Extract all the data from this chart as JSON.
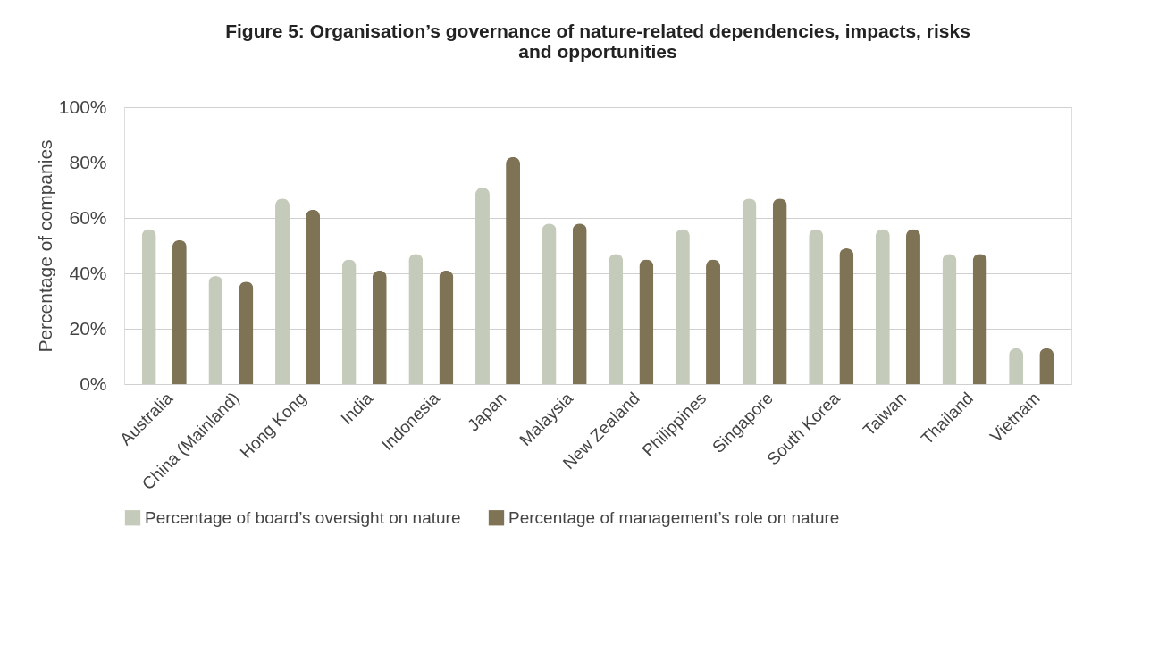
{
  "chart_data": {
    "type": "bar",
    "title": [
      "Figure 5: Organisation’s governance of nature-related dependencies, impacts, risks",
      "and opportunities"
    ],
    "ylabel": "Percentage of companies",
    "categories": [
      "Australia",
      "China (Mainland)",
      "Hong Kong",
      "India",
      "Indonesia",
      "Japan",
      "Malaysia",
      "New Zealand",
      "Philippines",
      "Singapore",
      "South Korea",
      "Taiwan",
      "Thailand",
      "Vietnam"
    ],
    "series": [
      {
        "name": "Percentage of board’s oversight on nature",
        "color": "#c5cbbb",
        "values": [
          56,
          39,
          67,
          45,
          47,
          71,
          58,
          47,
          56,
          67,
          56,
          56,
          47,
          13
        ]
      },
      {
        "name": "Percentage of management’s role on nature",
        "color": "#7f7356",
        "values": [
          52,
          37,
          63,
          41,
          41,
          82,
          58,
          45,
          45,
          67,
          49,
          56,
          47,
          13
        ]
      }
    ],
    "ylim": [
      0,
      100
    ],
    "yticks": [
      {
        "value": 0,
        "label": "0%"
      },
      {
        "value": 20,
        "label": "20%"
      },
      {
        "value": 40,
        "label": "40%"
      },
      {
        "value": 60,
        "label": "60%"
      },
      {
        "value": 80,
        "label": "80%"
      },
      {
        "value": 100,
        "label": "100%"
      }
    ],
    "grid": "y",
    "legend": "bottom"
  }
}
